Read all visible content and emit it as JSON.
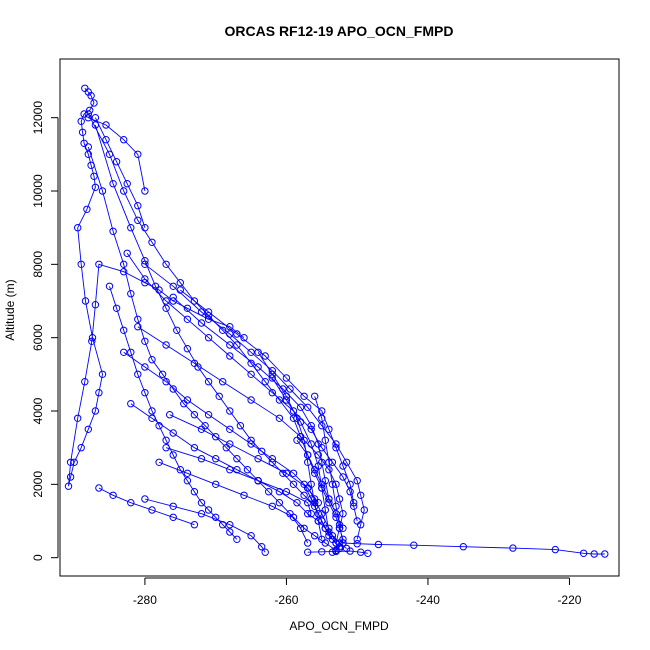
{
  "chart_data": {
    "type": "line",
    "title": "ORCAS RF12-19 APO_OCN_FMPD",
    "xlabel": "APO_OCN_FMPD",
    "ylabel": "Altitude (m)",
    "xlim": [
      -292,
      -213
    ],
    "ylim": [
      -500,
      13600
    ],
    "x_ticks": [
      -280,
      -260,
      -240,
      -220
    ],
    "y_ticks": [
      0,
      2000,
      4000,
      6000,
      8000,
      10000,
      12000
    ],
    "grid": false,
    "series_color": "#0000ff",
    "marker": "open-circle",
    "series": [
      {
        "x": [
          -288.5,
          -288.0,
          -287.6,
          -287.2,
          -287.8,
          -288.6,
          -289.0,
          -288.8,
          -288.6,
          -288.0,
          -287.6,
          -287.2,
          -287.0,
          -288.2,
          -289.5,
          -289.0,
          -288.4,
          -287.4,
          -286.0,
          -286.5,
          -287.0,
          -288.0,
          -289.0,
          -290.0,
          -290.5,
          -290.8,
          -290.5,
          -289.5,
          -288.5,
          -287.5,
          -287.0,
          -286.5,
          -283.0,
          -280.0,
          -278.0,
          -276.0,
          -274.0,
          -271.0,
          -268.0,
          -266.0
        ],
        "y": [
          12800,
          12700,
          12600,
          12400,
          12200,
          12100,
          11900,
          11600,
          11300,
          11000,
          10700,
          10400,
          10100,
          9500,
          9000,
          8000,
          7000,
          6000,
          5000,
          4500,
          4000,
          3500,
          3000,
          2600,
          2200,
          1950,
          2600,
          3800,
          4800,
          5900,
          6900,
          8000,
          7800,
          7500,
          7300,
          7000,
          6800,
          6500,
          6300,
          6000
        ]
      },
      {
        "x": [
          -288.0,
          -285.0,
          -283.0,
          -281.0,
          -279.0,
          -277.0,
          -275.0,
          -273.0,
          -271.0,
          -269.0,
          -267.0,
          -265.0,
          -263.0,
          -261.0,
          -259.0,
          -258.0,
          -257.0,
          -256.0,
          -255.0,
          -254.0,
          -253.0,
          -252.5,
          -252.0,
          -252.5,
          -253.0,
          -253.5
        ],
        "y": [
          12100,
          11000,
          10000,
          9200,
          8600,
          8000,
          7500,
          7000,
          6600,
          6200,
          5800,
          5300,
          4800,
          4300,
          3800,
          3300,
          2800,
          2300,
          1900,
          1500,
          1100,
          800,
          500,
          300,
          200,
          150
        ]
      },
      {
        "x": [
          -287.0,
          -284.5,
          -282.0,
          -280.0,
          -278.5,
          -277.0,
          -275.5,
          -274.0,
          -272.5,
          -271.0,
          -269.5,
          -268.0,
          -266.5,
          -265.0,
          -263.5,
          -262.0,
          -260.5,
          -259.0,
          -257.5,
          -256.0,
          -255.0,
          -254.0
        ],
        "y": [
          11800,
          10200,
          9000,
          8100,
          7400,
          6800,
          6200,
          5700,
          5200,
          4800,
          4400,
          4000,
          3600,
          3200,
          2900,
          2600,
          2300,
          2000,
          1700,
          1400,
          1000,
          600
        ]
      },
      {
        "x": [
          -288.0,
          -286.0,
          -284.5,
          -283.0,
          -282.0,
          -281.0,
          -280.0,
          -279.0,
          -277.5,
          -276.0,
          -274.5,
          -273.0,
          -271.5,
          -270.0,
          -268.5,
          -267.0,
          -265.5,
          -264.0,
          -262.5,
          -261.0,
          -259.5,
          -258.0,
          -257.0
        ],
        "y": [
          11200,
          10000,
          8900,
          8000,
          7200,
          6500,
          5900,
          5400,
          5000,
          4600,
          4200,
          3900,
          3600,
          3300,
          3000,
          2700,
          2400,
          2100,
          1800,
          1500,
          1200,
          800,
          400
        ]
      },
      {
        "x": [
          -285.0,
          -284.0,
          -283.0,
          -282.0,
          -281.0,
          -280.0,
          -279.0,
          -278.0,
          -277.0,
          -276.0,
          -275.0,
          -274.0,
          -273.0,
          -272.0,
          -271.0,
          -270.0,
          -269.0,
          -268.0,
          -267.0
        ],
        "y": [
          7400,
          6800,
          6200,
          5600,
          5000,
          4500,
          4000,
          3600,
          3200,
          2800,
          2400,
          2100,
          1800,
          1500,
          1300,
          1100,
          900,
          700,
          500
        ]
      },
      {
        "x": [
          -282.5,
          -280.0,
          -277.0,
          -274.0,
          -271.0,
          -268.0,
          -265.0,
          -262.0,
          -259.0,
          -256.5,
          -255.0,
          -253.5,
          -252.0,
          -251.0,
          -250.5,
          -250.0
        ],
        "y": [
          8300,
          7600,
          7000,
          6500,
          6000,
          5500,
          5000,
          4500,
          4000,
          3500,
          3000,
          2600,
          2200,
          1800,
          1400,
          1000
        ]
      },
      {
        "x": [
          -280.0,
          -276.0,
          -272.0,
          -268.0,
          -265.0,
          -262.0,
          -259.5,
          -257.0,
          -255.0,
          -253.0,
          -251.5,
          -250.0,
          -249.5,
          -249.0,
          -249.5,
          -250.0
        ],
        "y": [
          8000,
          7400,
          6700,
          6100,
          5600,
          5100,
          4600,
          4100,
          3600,
          3100,
          2600,
          2100,
          1700,
          1300,
          900,
          500
        ]
      },
      {
        "x": [
          -275.0,
          -271.0,
          -267.0,
          -263.0,
          -260.0,
          -257.5,
          -255.0,
          -254.0,
          -253.0,
          -252.0,
          -251.0,
          -250.5
        ],
        "y": [
          7300,
          6700,
          6100,
          5500,
          4900,
          4400,
          4000,
          3500,
          3000,
          2500,
          2000,
          1500
        ]
      },
      {
        "x": [
          -276.0,
          -272.0,
          -268.0,
          -264.0,
          -260.5,
          -258.0,
          -256.5,
          -255.5,
          -255.0,
          -254.5,
          -254.0
        ],
        "y": [
          7100,
          6400,
          5800,
          5200,
          4600,
          4100,
          3600,
          3100,
          2600,
          2100,
          1600
        ]
      },
      {
        "x": [
          -281.0,
          -277.0,
          -273.0,
          -269.0,
          -265.0,
          -261.0,
          -258.0,
          -255.5,
          -254.0,
          -253.0,
          -252.5,
          -252.0,
          -252.5,
          -253.0
        ],
        "y": [
          6300,
          5800,
          5300,
          4800,
          4300,
          3800,
          3300,
          2800,
          2400,
          2000,
          1600,
          1200,
          800,
          400
        ]
      },
      {
        "x": [
          -283.0,
          -280.0,
          -277.0,
          -274.0,
          -271.0,
          -268.0,
          -265.0,
          -262.0,
          -259.0,
          -257.0,
          -256.0,
          -255.0,
          -254.0,
          -253.0
        ],
        "y": [
          5600,
          5200,
          4800,
          4300,
          3900,
          3500,
          3100,
          2700,
          2300,
          1900,
          1600,
          1200,
          800,
          400
        ]
      },
      {
        "x": [
          -282.0,
          -279.0,
          -276.0,
          -273.0,
          -270.0,
          -267.0,
          -264.0,
          -261.0,
          -258.5,
          -257.0,
          -255.5,
          -254.5,
          -253.5,
          -252.5,
          -251.5
        ],
        "y": [
          4200,
          3800,
          3400,
          3000,
          2700,
          2400,
          2100,
          1800,
          1500,
          1200,
          1000,
          800,
          600,
          400,
          250
        ]
      },
      {
        "x": [
          -278.0,
          -274.0,
          -270.0,
          -266.0,
          -262.0,
          -259.0,
          -257.5,
          -256.0,
          -254.5,
          -253.0
        ],
        "y": [
          2600,
          2300,
          2000,
          1700,
          1400,
          1100,
          800,
          600,
          400,
          200
        ]
      },
      {
        "x": [
          -286.5,
          -284.5,
          -282.0,
          -279.0,
          -276.0,
          -273.0
        ],
        "y": [
          1900,
          1700,
          1500,
          1300,
          1100,
          900
        ]
      },
      {
        "x": [
          -280.0,
          -276.0,
          -272.0,
          -268.0,
          -265.0,
          -263.5,
          -263.0
        ],
        "y": [
          1600,
          1400,
          1200,
          900,
          600,
          300,
          150
        ]
      },
      {
        "x": [
          -277.0,
          -272.0,
          -268.0,
          -264.0,
          -260.0,
          -257.0,
          -256.5
        ],
        "y": [
          3000,
          2700,
          2400,
          2100,
          1800,
          1500,
          1200
        ]
      },
      {
        "x": [
          -264.0,
          -262.0,
          -260.0,
          -258.5,
          -257.5,
          -257.0,
          -256.5,
          -256.0,
          -255.5,
          -255.0
        ],
        "y": [
          5600,
          5000,
          4400,
          3800,
          3200,
          2600,
          2000,
          1500,
          1000,
          500
        ]
      },
      {
        "x": [
          -262.0,
          -260.0,
          -258.0,
          -256.5,
          -255.5,
          -255.0,
          -254.5,
          -254.0
        ],
        "y": [
          4900,
          4300,
          3700,
          3100,
          2500,
          1900,
          1300,
          700
        ]
      },
      {
        "x": [
          -256.0,
          -255.0,
          -254.5,
          -254.0,
          -253.5,
          -253.0,
          -252.5,
          -252.0
        ],
        "y": [
          4400,
          3800,
          3200,
          2600,
          2000,
          1400,
          900,
          400
        ]
      },
      {
        "x": [
          -257.5,
          -256.5,
          -255.5,
          -254.5,
          -253.5,
          -252.5
        ],
        "y": [
          2000,
          1600,
          1200,
          800,
          500,
          250
        ]
      },
      {
        "x": [
          -252.0,
          -250.0,
          -247.0,
          -242.0,
          -235.0,
          -228.0,
          -222.0,
          -218.0,
          -216.5,
          -215.0
        ],
        "y": [
          400,
          380,
          360,
          340,
          300,
          260,
          220,
          120,
          100,
          100
        ]
      },
      {
        "x": [
          -257.0,
          -255.0,
          -253.0,
          -251.0,
          -249.5,
          -248.5
        ],
        "y": [
          150,
          160,
          170,
          180,
          150,
          120
        ]
      },
      {
        "x": [
          -258.5,
          -257.0,
          -256.0,
          -255.0,
          -254.0,
          -253.0,
          -252.0
        ],
        "y": [
          3200,
          2800,
          2400,
          2000,
          1600,
          1200,
          800
        ]
      },
      {
        "x": [
          -276.5,
          -272.0,
          -268.0,
          -264.0,
          -260.0,
          -257.0,
          -255.5
        ],
        "y": [
          3900,
          3500,
          3100,
          2700,
          2300,
          1900,
          1500
        ]
      },
      {
        "x": [
          -287.0,
          -285.5,
          -284.0,
          -282.5,
          -281.0,
          -280.0
        ],
        "y": [
          12000,
          11400,
          10800,
          10200,
          9600,
          9000
        ]
      },
      {
        "x": [
          -288.0,
          -285.5,
          -283.0,
          -281.0,
          -280.0
        ],
        "y": [
          12000,
          11800,
          11400,
          11000,
          10000
        ]
      }
    ]
  }
}
